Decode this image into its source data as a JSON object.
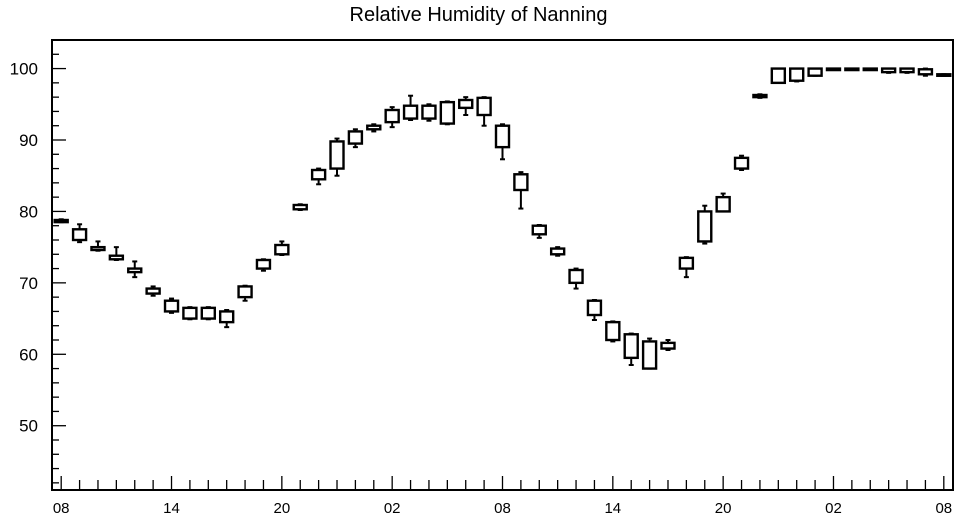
{
  "chart_data": {
    "type": "box",
    "title": "Relative Humidity of Nanning",
    "xlabel": "",
    "ylabel": "",
    "ylim": [
      41,
      104
    ],
    "y_ticks": [
      50,
      60,
      70,
      80,
      90,
      100
    ],
    "x_tick_labels": [
      "08",
      "14",
      "20",
      "02",
      "08",
      "14",
      "20",
      "02",
      "08"
    ],
    "x_tick_index": [
      0,
      6,
      12,
      18,
      24,
      30,
      36,
      42,
      48
    ],
    "x_domain": [
      -0.5,
      48.5
    ],
    "grid": false,
    "boxes": [
      {
        "x": 0,
        "q1": 78.5,
        "q3": 78.8,
        "low": 78.5,
        "high": 78.9
      },
      {
        "x": 1,
        "q1": 76.0,
        "q3": 77.5,
        "low": 75.7,
        "high": 78.2
      },
      {
        "x": 2,
        "q1": 74.6,
        "q3": 75.0,
        "low": 74.5,
        "high": 75.8
      },
      {
        "x": 3,
        "q1": 73.3,
        "q3": 73.8,
        "low": 73.2,
        "high": 75.0
      },
      {
        "x": 4,
        "q1": 71.5,
        "q3": 72.0,
        "low": 70.8,
        "high": 73.0
      },
      {
        "x": 5,
        "q1": 68.5,
        "q3": 69.2,
        "low": 68.2,
        "high": 69.5
      },
      {
        "x": 6,
        "q1": 66.0,
        "q3": 67.5,
        "low": 65.8,
        "high": 67.8
      },
      {
        "x": 7,
        "q1": 65.0,
        "q3": 66.5,
        "low": 64.9,
        "high": 66.6
      },
      {
        "x": 8,
        "q1": 65.0,
        "q3": 66.5,
        "low": 64.9,
        "high": 66.6
      },
      {
        "x": 9,
        "q1": 64.5,
        "q3": 66.0,
        "low": 63.8,
        "high": 66.2
      },
      {
        "x": 10,
        "q1": 68.0,
        "q3": 69.5,
        "low": 67.5,
        "high": 69.6
      },
      {
        "x": 11,
        "q1": 72.0,
        "q3": 73.2,
        "low": 71.7,
        "high": 73.3
      },
      {
        "x": 12,
        "q1": 74.0,
        "q3": 75.3,
        "low": 73.9,
        "high": 75.8
      },
      {
        "x": 13,
        "q1": 80.3,
        "q3": 80.9,
        "low": 80.2,
        "high": 81.0
      },
      {
        "x": 14,
        "q1": 84.5,
        "q3": 85.8,
        "low": 83.8,
        "high": 86.0
      },
      {
        "x": 15,
        "q1": 86.0,
        "q3": 89.8,
        "low": 85.0,
        "high": 90.2
      },
      {
        "x": 16,
        "q1": 89.5,
        "q3": 91.2,
        "low": 89.0,
        "high": 91.5
      },
      {
        "x": 17,
        "q1": 91.5,
        "q3": 92.0,
        "low": 91.2,
        "high": 92.2
      },
      {
        "x": 18,
        "q1": 92.5,
        "q3": 94.2,
        "low": 91.8,
        "high": 94.6
      },
      {
        "x": 19,
        "q1": 93.0,
        "q3": 94.8,
        "low": 92.8,
        "high": 96.2
      },
      {
        "x": 20,
        "q1": 93.0,
        "q3": 94.8,
        "low": 92.7,
        "high": 95.0
      },
      {
        "x": 21,
        "q1": 92.3,
        "q3": 95.3,
        "low": 92.2,
        "high": 95.4
      },
      {
        "x": 22,
        "q1": 94.5,
        "q3": 95.6,
        "low": 93.5,
        "high": 96.0
      },
      {
        "x": 23,
        "q1": 93.5,
        "q3": 95.9,
        "low": 92.0,
        "high": 96.0
      },
      {
        "x": 24,
        "q1": 89.0,
        "q3": 92.0,
        "low": 87.3,
        "high": 92.2
      },
      {
        "x": 25,
        "q1": 83.0,
        "q3": 85.2,
        "low": 80.4,
        "high": 85.5
      },
      {
        "x": 26,
        "q1": 76.8,
        "q3": 78.0,
        "low": 76.3,
        "high": 78.1
      },
      {
        "x": 27,
        "q1": 74.0,
        "q3": 74.8,
        "low": 73.8,
        "high": 75.0
      },
      {
        "x": 28,
        "q1": 70.0,
        "q3": 71.8,
        "low": 69.2,
        "high": 72.0
      },
      {
        "x": 29,
        "q1": 65.5,
        "q3": 67.5,
        "low": 64.8,
        "high": 67.6
      },
      {
        "x": 30,
        "q1": 62.0,
        "q3": 64.5,
        "low": 61.8,
        "high": 64.6
      },
      {
        "x": 31,
        "q1": 59.5,
        "q3": 62.8,
        "low": 58.5,
        "high": 62.9
      },
      {
        "x": 32,
        "q1": 58.0,
        "q3": 61.8,
        "low": 58.0,
        "high": 62.2
      },
      {
        "x": 33,
        "q1": 60.8,
        "q3": 61.6,
        "low": 60.6,
        "high": 62.0
      },
      {
        "x": 34,
        "q1": 72.0,
        "q3": 73.5,
        "low": 70.8,
        "high": 73.6
      },
      {
        "x": 35,
        "q1": 75.8,
        "q3": 80.0,
        "low": 75.5,
        "high": 80.8
      },
      {
        "x": 36,
        "q1": 80.0,
        "q3": 82.0,
        "low": 80.0,
        "high": 82.5
      },
      {
        "x": 37,
        "q1": 86.0,
        "q3": 87.5,
        "low": 85.8,
        "high": 87.8
      },
      {
        "x": 38,
        "q1": 96.0,
        "q3": 96.3,
        "low": 95.9,
        "high": 96.4
      },
      {
        "x": 39,
        "q1": 98.0,
        "q3": 100.0,
        "low": 98.0,
        "high": 100.0
      },
      {
        "x": 40,
        "q1": 98.3,
        "q3": 100.0,
        "low": 98.2,
        "high": 100.0
      },
      {
        "x": 41,
        "q1": 99.0,
        "q3": 100.0,
        "low": 99.0,
        "high": 100.0
      },
      {
        "x": 42,
        "q1": 99.9,
        "q3": 100.0,
        "low": 99.9,
        "high": 100.0
      },
      {
        "x": 43,
        "q1": 99.9,
        "q3": 100.0,
        "low": 99.9,
        "high": 100.0
      },
      {
        "x": 44,
        "q1": 99.9,
        "q3": 100.0,
        "low": 99.9,
        "high": 100.0
      },
      {
        "x": 45,
        "q1": 99.5,
        "q3": 100.0,
        "low": 99.4,
        "high": 100.0
      },
      {
        "x": 46,
        "q1": 99.5,
        "q3": 100.0,
        "low": 99.4,
        "high": 100.0
      },
      {
        "x": 47,
        "q1": 99.2,
        "q3": 99.9,
        "low": 99.0,
        "high": 100.0
      },
      {
        "x": 48,
        "q1": 99.0,
        "q3": 99.2,
        "low": 99.0,
        "high": 99.2
      }
    ]
  }
}
